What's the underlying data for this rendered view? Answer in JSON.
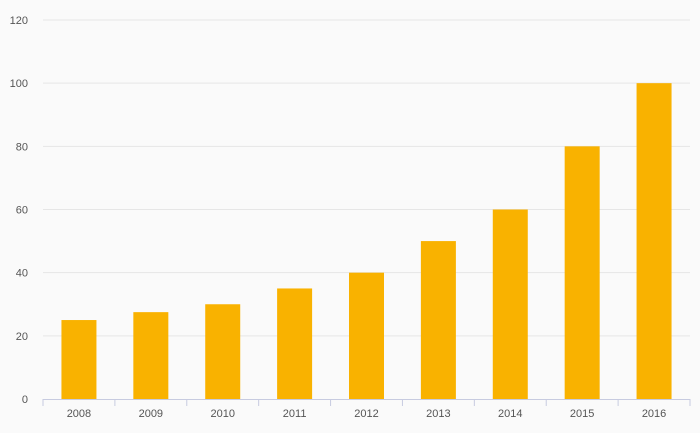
{
  "chart_data": {
    "type": "bar",
    "categories": [
      "2008",
      "2009",
      "2010",
      "2011",
      "2012",
      "2013",
      "2014",
      "2015",
      "2016"
    ],
    "values": [
      25,
      27.5,
      30,
      35,
      40,
      50,
      60,
      80,
      100
    ],
    "title": "",
    "xlabel": "",
    "ylabel": "",
    "ylim": [
      0,
      120
    ],
    "yticks": [
      0,
      20,
      40,
      60,
      80,
      100,
      120
    ],
    "grid": true,
    "legend": "none",
    "colors": {
      "bar": "#f9b200",
      "grid": "#e6e6e6",
      "axis": "#c7cbe0",
      "text": "#555555",
      "background": "#fafafa"
    }
  }
}
